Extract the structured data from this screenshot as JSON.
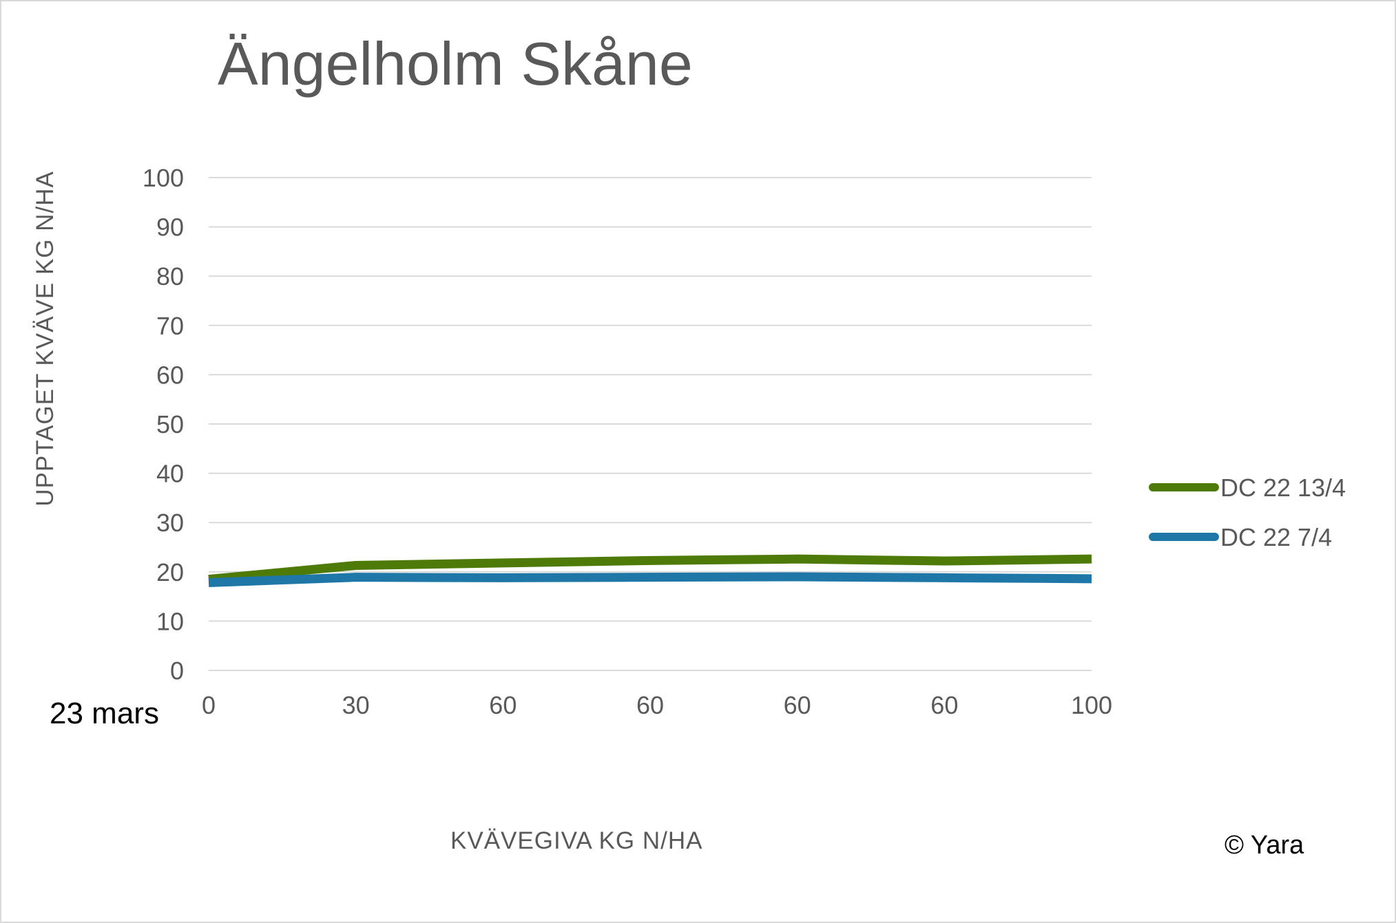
{
  "chart_data": {
    "type": "line",
    "title": "Ängelholm Skåne",
    "xlabel": "KVÄVEGIVA  KG N/HA",
    "ylabel": "UPPTAGET KVÄVE KG N/HA",
    "categories": [
      "0",
      "30",
      "60",
      "60",
      "60",
      "60",
      "100"
    ],
    "ylim": [
      0,
      100
    ],
    "yticks": [
      0,
      10,
      20,
      30,
      40,
      50,
      60,
      70,
      80,
      90,
      100
    ],
    "grid": true,
    "legend": "right",
    "series": [
      {
        "name": "DC 22 13/4",
        "color": "#4e7a07",
        "values": [
          18.5,
          21.3,
          21.8,
          22.3,
          22.6,
          22.2,
          22.6
        ]
      },
      {
        "name": "DC 22 7/4",
        "color": "#1f77a8",
        "values": [
          17.8,
          18.9,
          18.8,
          18.9,
          19.0,
          18.8,
          18.6
        ]
      }
    ]
  },
  "annotation": "23 mars",
  "copyright": "© Yara"
}
